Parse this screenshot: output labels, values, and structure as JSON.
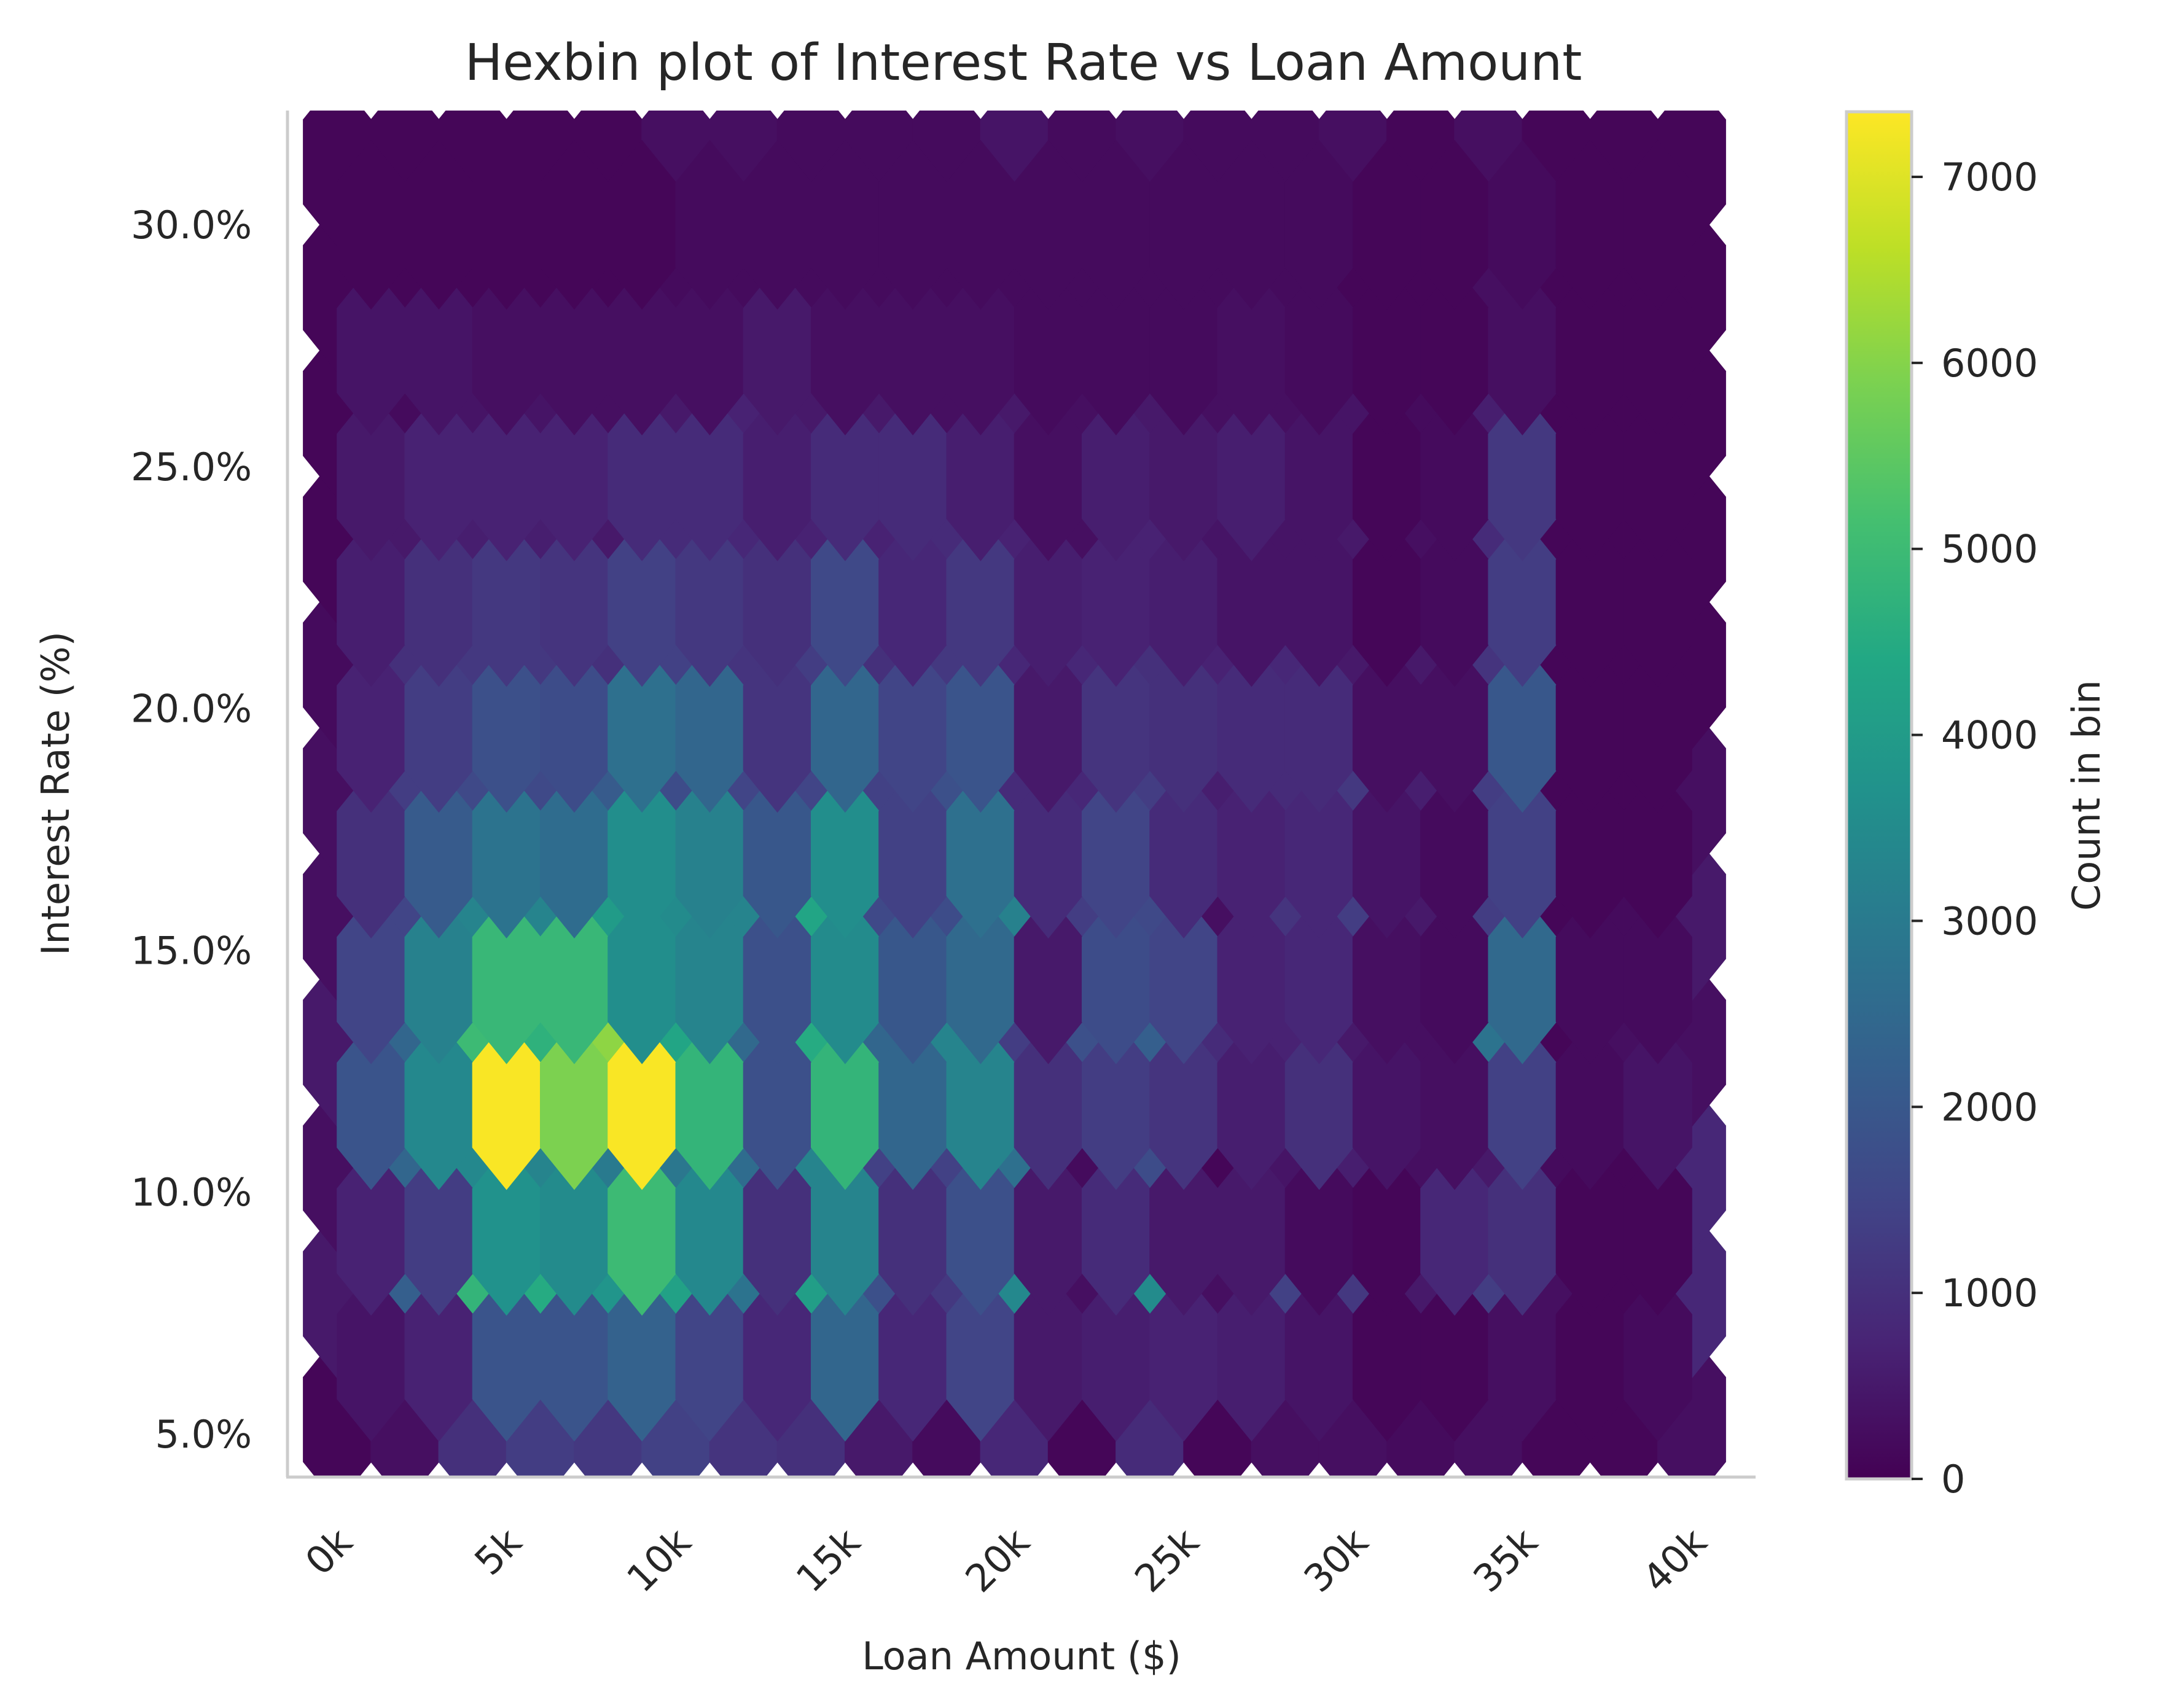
{
  "chart_data": {
    "type": "heatmap",
    "subtype": "hexbin",
    "title": "Hexbin plot of Interest Rate vs Loan Amount",
    "xlabel": "Loan Amount ($)",
    "ylabel": "Interest Rate (%)",
    "xlim": [
      0,
      40000
    ],
    "ylim": [
      5.3,
      31.3
    ],
    "x_ticks": [
      0,
      5000,
      10000,
      15000,
      20000,
      25000,
      30000,
      35000,
      40000
    ],
    "x_tick_labels": [
      "0k",
      "5k",
      "10k",
      "15k",
      "20k",
      "25k",
      "30k",
      "35k",
      "40k"
    ],
    "y_ticks": [
      5,
      10,
      15,
      20,
      25,
      30
    ],
    "y_tick_labels": [
      "5.0%",
      "10.0%",
      "15.0%",
      "20.0%",
      "25.0%",
      "30.0%"
    ],
    "grid": false,
    "colormap": "viridis",
    "colorbar": {
      "label": "Count in bin",
      "range": [
        0,
        7350
      ],
      "ticks": [
        0,
        1000,
        2000,
        3000,
        4000,
        5000,
        6000,
        7000
      ],
      "tick_labels": [
        "0",
        "1000",
        "2000",
        "3000",
        "4000",
        "5000",
        "6000",
        "7000"
      ]
    },
    "bins": {
      "gridsize": 20,
      "x_centers_even_rows": [
        0,
        2000,
        4000,
        6000,
        8000,
        10000,
        12000,
        14000,
        16000,
        18000,
        20000,
        22000,
        24000,
        26000,
        28000,
        30000,
        32000,
        34000,
        36000,
        38000,
        40000
      ],
      "x_centers_odd_rows": [
        1000,
        3000,
        5000,
        7000,
        9000,
        11000,
        13000,
        15000,
        17000,
        19000,
        21000,
        23000,
        25000,
        27000,
        29000,
        31000,
        33000,
        35000,
        37000,
        39000
      ],
      "y_centers_even_rows": [
        5.3,
        7.9,
        10.5,
        13.1,
        15.7,
        18.3,
        20.9,
        23.5,
        26.1,
        28.7,
        31.3
      ],
      "y_centers_odd_rows": [
        6.6,
        9.2,
        11.8,
        14.4,
        17.0,
        19.6,
        22.2,
        24.8,
        27.4,
        30.0
      ],
      "even_rows": [
        [
          100,
          300,
          1000,
          1300,
          1200,
          1400,
          1100,
          1000,
          500,
          200,
          800,
          100,
          900,
          100,
          300,
          300,
          200,
          300,
          100,
          100,
          300
        ],
        [
          500,
          2200,
          4800,
          4500,
          3800,
          4200,
          2800,
          4100,
          1800,
          1200,
          3400,
          300,
          3500,
          300,
          1400,
          1200,
          500,
          1300,
          300,
          100,
          800
        ],
        [
          300,
          2400,
          3400,
          3300,
          3000,
          2900,
          2600,
          3300,
          1400,
          1400,
          2700,
          200,
          1700,
          100,
          400,
          600,
          300,
          500,
          200,
          100,
          800
        ],
        [
          500,
          2400,
          5000,
          4700,
          6100,
          4300,
          2500,
          4500,
          2400,
          3300,
          1300,
          1800,
          2200,
          900,
          700,
          500,
          300,
          2800,
          100,
          300,
          300
        ],
        [
          300,
          1500,
          3300,
          3300,
          4000,
          3500,
          3300,
          4300,
          1600,
          1700,
          3200,
          1300,
          1600,
          300,
          1100,
          1300,
          500,
          1300,
          100,
          200,
          500
        ],
        [
          300,
          1300,
          1600,
          1600,
          2100,
          1700,
          1500,
          1500,
          1400,
          1800,
          900,
          800,
          1300,
          600,
          900,
          1200,
          600,
          1300,
          100,
          100,
          300
        ],
        [
          200,
          1000,
          1200,
          1200,
          1000,
          1400,
          1100,
          1300,
          1000,
          1200,
          800,
          800,
          1000,
          700,
          800,
          500,
          500,
          1100,
          100,
          100,
          100
        ],
        [
          100,
          500,
          600,
          600,
          500,
          900,
          800,
          700,
          700,
          900,
          700,
          300,
          700,
          400,
          400,
          500,
          300,
          900,
          100,
          100,
          100
        ],
        [
          100,
          200,
          400,
          400,
          300,
          500,
          700,
          500,
          500,
          300,
          500,
          300,
          500,
          300,
          300,
          400,
          200,
          600,
          100,
          100,
          100
        ],
        [
          100,
          100,
          100,
          100,
          100,
          200,
          200,
          200,
          200,
          200,
          200,
          200,
          200,
          200,
          200,
          100,
          100,
          300,
          100,
          100,
          100
        ],
        [
          100,
          100,
          100,
          100,
          100,
          300,
          300,
          200,
          200,
          200,
          400,
          200,
          300,
          200,
          200,
          300,
          100,
          300,
          100,
          100,
          100
        ]
      ],
      "odd_rows": [
        [
          400,
          700,
          1900,
          1900,
          2300,
          1500,
          800,
          2400,
          800,
          1500,
          500,
          600,
          700,
          600,
          400,
          100,
          100,
          300,
          100,
          200
        ],
        [
          700,
          1300,
          3700,
          3500,
          5000,
          3400,
          1000,
          3300,
          1000,
          1800,
          500,
          900,
          500,
          500,
          200,
          100,
          800,
          1000,
          100,
          100
        ],
        [
          1900,
          3400,
          7300,
          5900,
          7300,
          4800,
          1800,
          4800,
          2400,
          3300,
          1000,
          1300,
          1100,
          600,
          1000,
          400,
          300,
          1400,
          200,
          400
        ],
        [
          1500,
          3200,
          4900,
          4900,
          3600,
          3300,
          1800,
          3500,
          2000,
          2500,
          500,
          1700,
          1500,
          700,
          800,
          300,
          200,
          2500,
          200,
          200
        ],
        [
          1000,
          2100,
          2800,
          2600,
          3600,
          3200,
          2000,
          3600,
          1400,
          2700,
          900,
          1500,
          900,
          700,
          800,
          400,
          200,
          1400,
          100,
          100
        ],
        [
          700,
          1300,
          1800,
          1700,
          2700,
          2400,
          1100,
          2400,
          1500,
          1900,
          500,
          1100,
          1000,
          900,
          900,
          300,
          300,
          2000,
          100,
          100
        ],
        [
          600,
          1000,
          1200,
          1100,
          1400,
          1200,
          1000,
          1600,
          800,
          1200,
          600,
          700,
          600,
          400,
          400,
          100,
          200,
          1300,
          100,
          100
        ],
        [
          500,
          700,
          700,
          700,
          900,
          900,
          600,
          900,
          900,
          600,
          300,
          600,
          500,
          600,
          400,
          100,
          200,
          1200,
          100,
          100
        ],
        [
          400,
          400,
          300,
          300,
          300,
          300,
          500,
          300,
          300,
          300,
          200,
          200,
          200,
          300,
          200,
          100,
          100,
          300,
          100,
          100
        ],
        [
          100,
          100,
          100,
          100,
          100,
          200,
          200,
          200,
          200,
          200,
          200,
          200,
          200,
          200,
          200,
          100,
          100,
          200,
          100,
          100
        ]
      ]
    }
  }
}
